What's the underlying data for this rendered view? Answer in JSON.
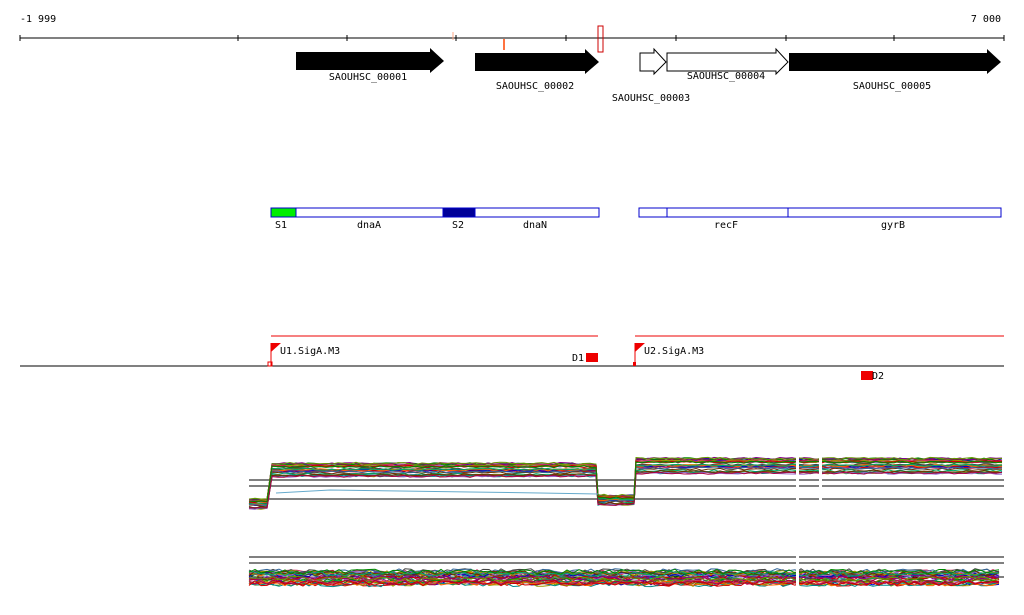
{
  "ruler": {
    "start_label": "-1 999",
    "end_label": "7 000"
  },
  "genes": [
    {
      "id": "SAOUHSC_00001",
      "label": "SAOUHSC_00001",
      "fill": "black"
    },
    {
      "id": "SAOUHSC_00002",
      "label": "SAOUHSC_00002",
      "fill": "black"
    },
    {
      "id": "SAOUHSC_00003",
      "label": "SAOUHSC_00003",
      "fill": "white"
    },
    {
      "id": "SAOUHSC_00004",
      "label": "SAOUHSC_00004",
      "fill": "white"
    },
    {
      "id": "SAOUHSC_00005",
      "label": "SAOUHSC_00005",
      "fill": "black"
    }
  ],
  "features": [
    {
      "label": "S1",
      "color": "#00ee00"
    },
    {
      "label": "dnaA",
      "color": "#ffffff"
    },
    {
      "label": "S2",
      "color": "#000099"
    },
    {
      "label": "dnaN",
      "color": "#ffffff"
    },
    {
      "label": "recF",
      "color": "#ffffff"
    },
    {
      "label": "gyrB",
      "color": "#ffffff"
    }
  ],
  "transcripts": [
    {
      "label": "U1.SigA.M3"
    },
    {
      "label": "U2.SigA.M3"
    }
  ],
  "terminators": [
    {
      "label": "D1"
    },
    {
      "label": "D2"
    }
  ],
  "colors": {
    "feature_border": "#0000cc",
    "transcript": "#ee0000",
    "ruler": "#000000"
  }
}
